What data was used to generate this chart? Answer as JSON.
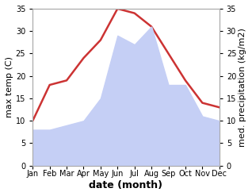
{
  "months": [
    "Jan",
    "Feb",
    "Mar",
    "Apr",
    "May",
    "Jun",
    "Jul",
    "Aug",
    "Sep",
    "Oct",
    "Nov",
    "Dec"
  ],
  "temperature": [
    10,
    18,
    19,
    24,
    28,
    35,
    34,
    31,
    25,
    19,
    14,
    13
  ],
  "precipitation": [
    8,
    8,
    9,
    10,
    15,
    29,
    27,
    31,
    18,
    18,
    11,
    10
  ],
  "temp_color": "#cc3333",
  "precip_color": "#c5cff5",
  "ylim_left": [
    0,
    35
  ],
  "ylim_right": [
    0,
    35
  ],
  "yticks": [
    0,
    5,
    10,
    15,
    20,
    25,
    30,
    35
  ],
  "ylabel_left": "max temp (C)",
  "ylabel_right": "med. precipitation (kg/m2)",
  "xlabel": "date (month)",
  "bg_color": "#ffffff",
  "spine_color": "#aaaaaa",
  "tick_label_size": 7,
  "axis_label_size": 8
}
